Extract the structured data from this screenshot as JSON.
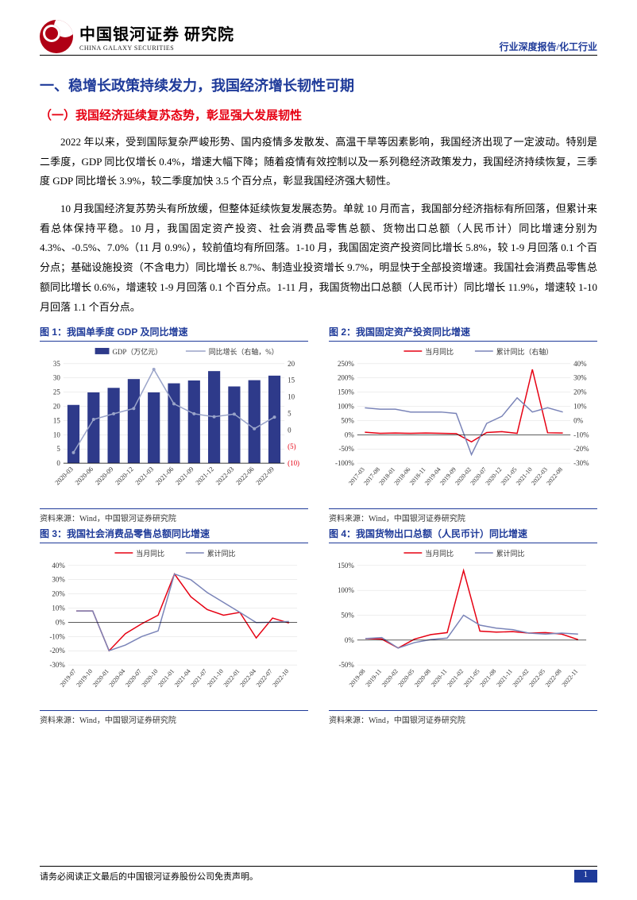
{
  "header": {
    "logo_cn": "中国银河证券",
    "logo_en": "CHINA GALAXY SECURITIES",
    "logo_suffix": "研究院",
    "right": "行业深度报告/化工行业"
  },
  "section": {
    "h1": "一、稳增长政策持续发力，我国经济增长韧性可期",
    "h2": "（一）我国经济延续复苏态势，彰显强大发展韧性",
    "p1": "2022 年以来，受到国际复杂严峻形势、国内疫情多发散发、高温干旱等因素影响，我国经济出现了一定波动。特别是二季度，GDP 同比仅增长 0.4%，增速大幅下降；随着疫情有效控制以及一系列稳经济政策发力，我国经济持续恢复，三季度 GDP 同比增长 3.9%，较二季度加快 3.5 个百分点，彰显我国经济强大韧性。",
    "p2": "10 月我国经济复苏势头有所放缓，但整体延续恢复发展态势。单就 10 月而言，我国部分经济指标有所回落，但累计来看总体保持平稳。10 月，我国固定资产投资、社会消费品零售总额、货物出口总额（人民币计）同比增速分别为 4.3%、-0.5%、7.0%（11 月 0.9%），较前值均有所回落。1-10 月，我国固定资产投资同比增长 5.8%，较 1-9 月回落 0.1 个百分点；基础设施投资（不含电力）同比增长 8.7%、制造业投资增长 9.7%，明显快于全部投资增速。我国社会消费品零售总额同比增长 0.6%，增速较 1-9 月回落 0.1 个百分点。1-11 月，我国货物出口总额（人民币计）同比增长 11.9%，增速较 1-10 月回落 1.1 个百分点。"
  },
  "charts": {
    "c1": {
      "title": "图 1：我国单季度 GDP 及同比增速",
      "type": "bar+line",
      "legend": [
        {
          "label": "GDP（万亿元）",
          "kind": "bar",
          "color": "#2e3a8a"
        },
        {
          "label": "同比增长（右轴，%）",
          "kind": "line",
          "color": "#9aa4c9"
        }
      ],
      "categories": [
        "2020-03",
        "2020-06",
        "2020-09",
        "2020-12",
        "2021-03",
        "2021-06",
        "2021-09",
        "2021-12",
        "2022-03",
        "2022-06",
        "2022-09"
      ],
      "bars": [
        20.5,
        24.9,
        26.5,
        29.6,
        24.9,
        28.1,
        29.1,
        32.4,
        27.0,
        29.2,
        30.8
      ],
      "line": [
        -6.8,
        3.2,
        4.9,
        6.5,
        18.3,
        7.9,
        4.9,
        4.0,
        4.8,
        0.4,
        3.9
      ],
      "y_left": {
        "min": 0,
        "max": 35,
        "step": 5
      },
      "y_right": {
        "min": -10,
        "max": 20,
        "step": 5,
        "neg_color": "#e60012"
      },
      "label_fontsize": 9,
      "bar_color": "#2e3a8a",
      "line_color": "#9aa4c9",
      "grid_color": "#dcdcdc",
      "bg": "#ffffff",
      "source": "资料来源：Wind，中国银河证券研究院"
    },
    "c2": {
      "title": "图 2：我国固定资产投资同比增速",
      "type": "dual-line",
      "legend": [
        {
          "label": "当月同比",
          "kind": "line",
          "color": "#e60012"
        },
        {
          "label": "累计同比（右轴）",
          "kind": "line",
          "color": "#7a84b8"
        }
      ],
      "categories": [
        "2017-03",
        "2017-08",
        "2018-01",
        "2018-06",
        "2018-11",
        "2019-04",
        "2019-09",
        "2020-02",
        "2020-07",
        "2020-12",
        "2021-05",
        "2021-10",
        "2022-03",
        "2022-08"
      ],
      "series_a": [
        9,
        5,
        6,
        5,
        6,
        5,
        4,
        -25,
        8,
        11,
        5,
        3,
        7,
        6
      ],
      "series_b": [
        9,
        8,
        8,
        6,
        6,
        6,
        5,
        -24,
        -2,
        3,
        16,
        6,
        9,
        6
      ],
      "y_left": {
        "min": -100,
        "max": 250,
        "step": 50
      },
      "y_right": {
        "min": -30,
        "max": 40,
        "step": 10
      },
      "spike_index": 11,
      "spike_a": 230,
      "line_a_color": "#e60012",
      "line_b_color": "#7a84b8",
      "grid_color": "#dcdcdc",
      "bg": "#ffffff",
      "label_fontsize": 9,
      "source": "资料来源：Wind，中国银河证券研究院"
    },
    "c3": {
      "title": "图 3：我国社会消费品零售总额同比增速",
      "type": "dual-line",
      "legend": [
        {
          "label": "当月同比",
          "kind": "line",
          "color": "#e60012"
        },
        {
          "label": "累计同比",
          "kind": "line",
          "color": "#7a84b8"
        }
      ],
      "categories": [
        "2019-07",
        "2019-10",
        "2020-01",
        "2020-04",
        "2020-07",
        "2020-10",
        "2021-01",
        "2021-04",
        "2021-07",
        "2021-10",
        "2022-01",
        "2022-04",
        "2022-07",
        "2022-10"
      ],
      "series_a": [
        8,
        8,
        -20,
        -8,
        -1,
        5,
        34,
        18,
        9,
        5,
        7,
        -11,
        3,
        -0.5
      ],
      "series_b": [
        8,
        8,
        -20,
        -16,
        -10,
        -6,
        34,
        30,
        21,
        14,
        7,
        -0.2,
        0,
        0.6
      ],
      "y_left": {
        "min": -30,
        "max": 40,
        "step": 10
      },
      "line_a_color": "#e60012",
      "line_b_color": "#7a84b8",
      "grid_color": "#dcdcdc",
      "bg": "#ffffff",
      "label_fontsize": 9,
      "source": "资料来源：Wind，中国银河证券研究院"
    },
    "c4": {
      "title": "图 4：我国货物出口总额（人民币计）同比增速",
      "type": "dual-line",
      "legend": [
        {
          "label": "当月同比",
          "kind": "line",
          "color": "#e60012"
        },
        {
          "label": "累计同比",
          "kind": "line",
          "color": "#7a84b8"
        }
      ],
      "categories": [
        "2019-08",
        "2019-11",
        "2020-02",
        "2020-05",
        "2020-08",
        "2020-11",
        "2021-02",
        "2021-05",
        "2021-08",
        "2021-11",
        "2022-02",
        "2022-05",
        "2022-08",
        "2022-11"
      ],
      "series_a": [
        3,
        2,
        -16,
        2,
        11,
        15,
        140,
        18,
        16,
        17,
        14,
        15,
        12,
        1
      ],
      "series_b": [
        3,
        5,
        -16,
        -5,
        1,
        4,
        50,
        30,
        24,
        21,
        14,
        12,
        14,
        12
      ],
      "y_left": {
        "min": -50,
        "max": 150,
        "step": 50
      },
      "line_a_color": "#e60012",
      "line_b_color": "#7a84b8",
      "grid_color": "#dcdcdc",
      "bg": "#ffffff",
      "label_fontsize": 9,
      "source": "资料来源：Wind，中国银河证券研究院"
    }
  },
  "footer": {
    "disclaimer": "请务必阅读正文最后的中国银河证券股份公司免责声明。",
    "page": "1"
  }
}
